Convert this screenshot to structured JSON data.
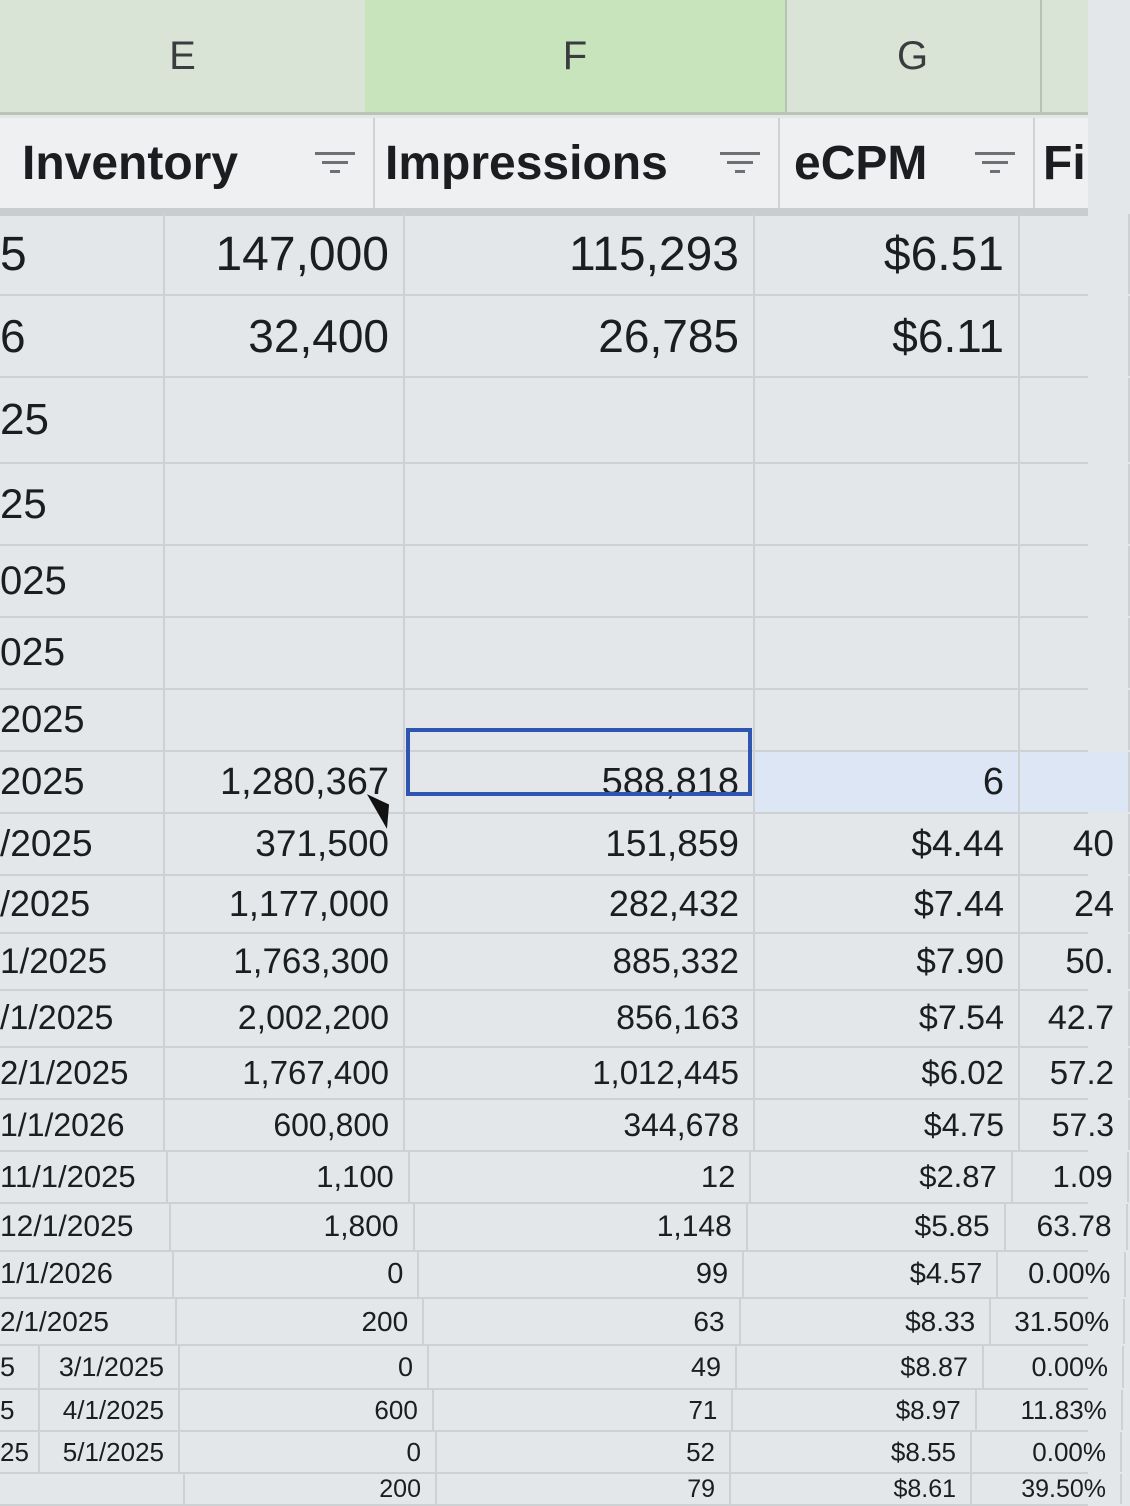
{
  "column_letters": {
    "E": "E",
    "F": "F",
    "G": "G"
  },
  "headers": [
    {
      "label": "Inventory",
      "filter_icon": "filter-icon"
    },
    {
      "label": "Impressions",
      "filter_icon": "filter-icon"
    },
    {
      "label": "eCPM",
      "filter_icon": "filter-icon"
    },
    {
      "label": "Fi"
    }
  ],
  "selected_column": "F",
  "colors": {
    "selection_border": "#2e55b0",
    "column_header": "#d9e4d6",
    "selected_column_header": "#c7e4bd"
  },
  "rows": [
    {
      "pre": "",
      "d": "5",
      "e": "147,000",
      "f": "115,293",
      "g": "$6.51",
      "h": ""
    },
    {
      "pre": "",
      "d": "6",
      "e": "32,400",
      "f": "26,785",
      "g": "$6.11",
      "h": ""
    },
    {
      "pre": "",
      "d": "25",
      "e": "",
      "f": "",
      "g": "",
      "h": ""
    },
    {
      "pre": "",
      "d": "25",
      "e": "",
      "f": "",
      "g": "",
      "h": ""
    },
    {
      "pre": "",
      "d": "025",
      "e": "",
      "f": "",
      "g": "",
      "h": ""
    },
    {
      "pre": "",
      "d": "025",
      "e": "",
      "f": "",
      "g": "",
      "h": ""
    },
    {
      "pre": "",
      "d": "2025",
      "e": "",
      "f": "",
      "g": "",
      "h": ""
    },
    {
      "pre": "",
      "d": "2025",
      "e": "1,280,367",
      "f": "588,818",
      "g": "6",
      "h": ""
    },
    {
      "pre": "",
      "d": "/2025",
      "e": "371,500",
      "f": "151,859",
      "g": "$4.44",
      "h": "40"
    },
    {
      "pre": "",
      "d": "/2025",
      "e": "1,177,000",
      "f": "282,432",
      "g": "$7.44",
      "h": "24"
    },
    {
      "pre": "",
      "d": "1/2025",
      "e": "1,763,300",
      "f": "885,332",
      "g": "$7.90",
      "h": "50."
    },
    {
      "pre": "",
      "d": "/1/2025",
      "e": "2,002,200",
      "f": "856,163",
      "g": "$7.54",
      "h": "42.7"
    },
    {
      "pre": "",
      "d": "2/1/2025",
      "e": "1,767,400",
      "f": "1,012,445",
      "g": "$6.02",
      "h": "57.2"
    },
    {
      "pre": "",
      "d": "1/1/2026",
      "e": "600,800",
      "f": "344,678",
      "g": "$4.75",
      "h": "57.3"
    },
    {
      "pre": "",
      "d": "11/1/2025",
      "e": "1,100",
      "f": "12",
      "g": "$2.87",
      "h": "1.09"
    },
    {
      "pre": "",
      "d": "12/1/2025",
      "e": "1,800",
      "f": "1,148",
      "g": "$5.85",
      "h": "63.78"
    },
    {
      "pre": "",
      "d": "1/1/2026",
      "e": "0",
      "f": "99",
      "g": "$4.57",
      "h": "0.00%"
    },
    {
      "pre": "",
      "d": "2/1/2025",
      "e": "200",
      "f": "63",
      "g": "$8.33",
      "h": "31.50%"
    },
    {
      "pre": "5",
      "d": "3/1/2025",
      "e": "0",
      "f": "49",
      "g": "$8.87",
      "h": "0.00%"
    },
    {
      "pre": "5",
      "d": "4/1/2025",
      "e": "600",
      "f": "71",
      "g": "$8.97",
      "h": "11.83%"
    },
    {
      "pre": "25",
      "d": "5/1/2025",
      "e": "0",
      "f": "52",
      "g": "$8.55",
      "h": "0.00%"
    },
    {
      "pre": "",
      "d": "",
      "e": "200",
      "f": "79",
      "g": "$8.61",
      "h": "39.50%"
    }
  ]
}
